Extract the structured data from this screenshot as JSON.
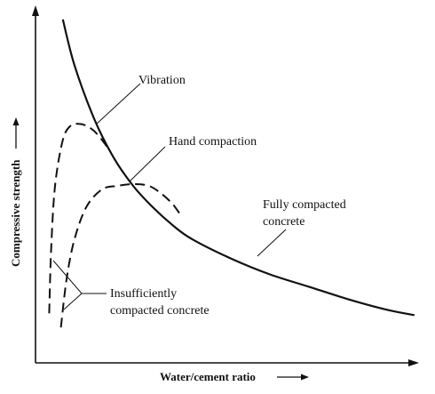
{
  "chart_data": {
    "type": "line",
    "xlabel": "Water/cement ratio",
    "ylabel": "Compressive strength",
    "axis_arrows": true,
    "tick_labels": false,
    "grid": false,
    "xlim": [
      0,
      1
    ],
    "ylim": [
      0,
      1
    ],
    "series": [
      {
        "name": "Fully compacted concrete",
        "style": "solid",
        "x": [
          0.07,
          0.1,
          0.15,
          0.2,
          0.25,
          0.3,
          0.35,
          0.4,
          0.5,
          0.6,
          0.7,
          0.8,
          0.9,
          0.97
        ],
        "y": [
          0.97,
          0.84,
          0.69,
          0.58,
          0.5,
          0.44,
          0.39,
          0.35,
          0.295,
          0.25,
          0.215,
          0.18,
          0.15,
          0.135
        ]
      },
      {
        "name": "Vibration",
        "style": "dashed",
        "x": [
          0.035,
          0.04,
          0.05,
          0.07,
          0.09,
          0.11,
          0.13,
          0.15,
          0.17,
          0.19
        ],
        "y": [
          0.14,
          0.32,
          0.5,
          0.63,
          0.67,
          0.675,
          0.67,
          0.655,
          0.63,
          0.6
        ]
      },
      {
        "name": "Hand compaction",
        "style": "dashed",
        "x": [
          0.065,
          0.08,
          0.1,
          0.13,
          0.17,
          0.21,
          0.25,
          0.29,
          0.32,
          0.35,
          0.37
        ],
        "y": [
          0.1,
          0.24,
          0.35,
          0.44,
          0.49,
          0.5,
          0.505,
          0.5,
          0.48,
          0.45,
          0.42
        ]
      }
    ],
    "annotations": {
      "vibration": "Vibration",
      "hand": "Hand compaction",
      "fully_line1": "Fully compacted",
      "fully_line2": "concrete",
      "insuff_line1": "Insufficiently",
      "insuff_line2": "compacted concrete"
    },
    "colors": {
      "ink": "#111111",
      "background": "#ffffff"
    }
  }
}
